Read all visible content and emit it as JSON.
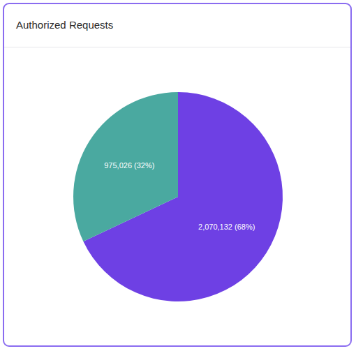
{
  "chart_data": {
    "type": "pie",
    "title": "Authorized Requests",
    "values": [
      2070132,
      975026
    ],
    "value_labels": [
      "2,070,132 (68%)",
      "975,026 (32%)"
    ],
    "colors": [
      "#6e40e4",
      "#4aa9a0"
    ],
    "data_labels": true
  }
}
